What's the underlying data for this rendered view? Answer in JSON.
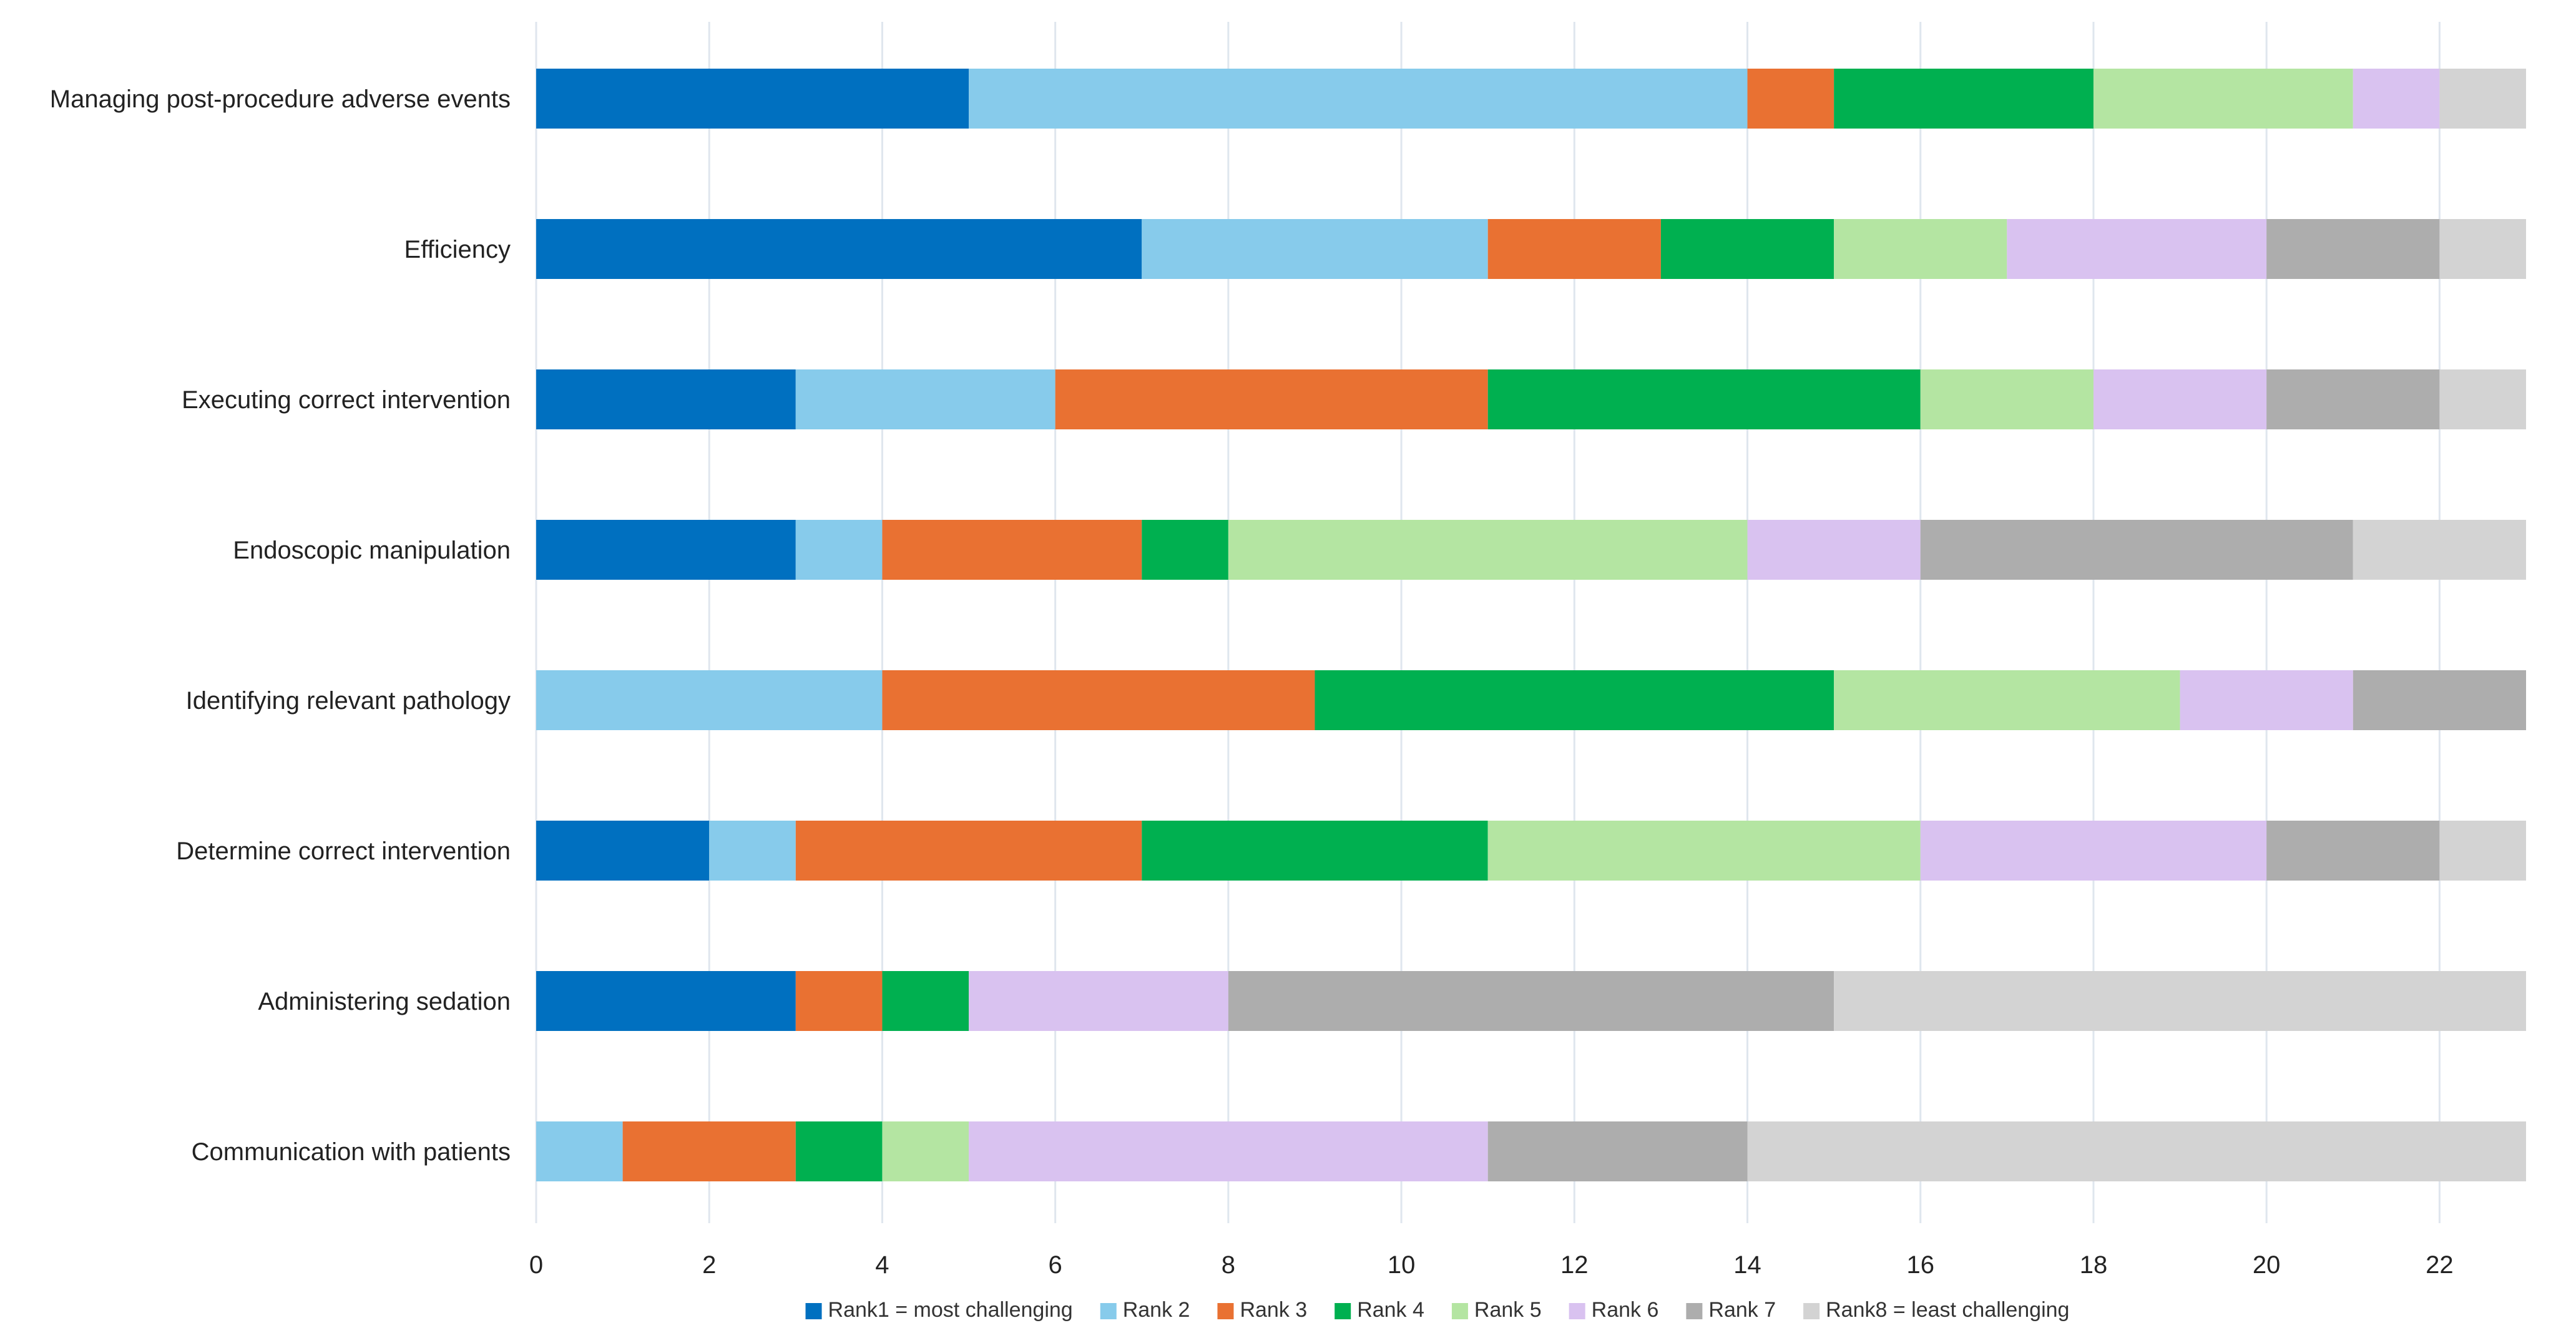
{
  "chart_data": {
    "type": "bar",
    "orientation": "horizontal",
    "stacked": true,
    "categories": [
      "Managing post-procedure adverse events",
      "Efficiency",
      "Executing correct intervention",
      "Endoscopic manipulation",
      "Identifying relevant pathology",
      "Determine correct intervention",
      "Administering sedation",
      "Communication with patients"
    ],
    "series": [
      {
        "name": "Rank1 = most challenging",
        "color": "#0070c0",
        "values": [
          5,
          7,
          3,
          3,
          0,
          2,
          3,
          0
        ]
      },
      {
        "name": "Rank 2",
        "color": "#87cbeb",
        "values": [
          9,
          4,
          3,
          1,
          4,
          1,
          0,
          1
        ]
      },
      {
        "name": "Rank 3",
        "color": "#e97132",
        "values": [
          1,
          2,
          5,
          3,
          5,
          4,
          1,
          2
        ]
      },
      {
        "name": "Rank 4",
        "color": "#00b050",
        "values": [
          3,
          2,
          5,
          1,
          6,
          4,
          1,
          1
        ]
      },
      {
        "name": "Rank 5",
        "color": "#b4e5a2",
        "values": [
          3,
          2,
          2,
          6,
          4,
          5,
          0,
          1
        ]
      },
      {
        "name": "Rank 6",
        "color": "#d9c2f0",
        "values": [
          1,
          3,
          2,
          2,
          2,
          4,
          3,
          6
        ]
      },
      {
        "name": "Rank 7",
        "color": "#adadad",
        "values": [
          0,
          2,
          2,
          5,
          2,
          2,
          7,
          3
        ]
      },
      {
        "name": "Rank8 = least challenging",
        "color": "#d3d3d3",
        "values": [
          1,
          1,
          1,
          2,
          0,
          1,
          8,
          9
        ]
      }
    ],
    "xlim": [
      0,
      23
    ],
    "xticks": [
      0,
      2,
      4,
      6,
      8,
      10,
      12,
      14,
      16,
      18,
      20,
      22
    ],
    "grid": true,
    "legend_position": "bottom"
  }
}
